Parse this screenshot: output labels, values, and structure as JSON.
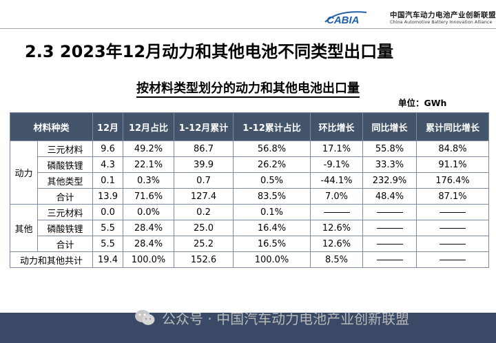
{
  "header": {
    "logo_text": "CABIA",
    "org_name_cn": "中国汽车动力电池产业创新联盟",
    "org_name_en": "China Automotive Battery Innovation Alliance"
  },
  "slide_title": "2.3 2023年12月动力和其他电池不同类型出口量",
  "table_title": "按材料类型划分的动力和其他电池出口量",
  "unit": "单位：GWh",
  "columns": [
    "材料种类",
    "12月",
    "12月占比",
    "1-12月累计",
    "1-12累计占比",
    "环比增长",
    "同比增长",
    "累计同比增长"
  ],
  "groups": [
    {
      "name": "动力",
      "rows": [
        {
          "type": "三元材料",
          "dec": "9.6",
          "dec_share": "49.2%",
          "ytd": "86.7",
          "ytd_share": "56.8%",
          "mom": "17.1%",
          "yoy": "55.8%",
          "ytd_yoy": "84.8%"
        },
        {
          "type": "磷酸铁锂",
          "dec": "4.3",
          "dec_share": "22.1%",
          "ytd": "39.9",
          "ytd_share": "26.2%",
          "mom": "-9.1%",
          "yoy": "33.3%",
          "ytd_yoy": "91.1%"
        },
        {
          "type": "其他类型",
          "dec": "0.1",
          "dec_share": "0.3%",
          "ytd": "0.7",
          "ytd_share": "0.5%",
          "mom": "-44.1%",
          "yoy": "232.9%",
          "ytd_yoy": "176.4%"
        },
        {
          "type": "合计",
          "dec": "13.9",
          "dec_share": "71.6%",
          "ytd": "127.4",
          "ytd_share": "83.5%",
          "mom": "7.0%",
          "yoy": "48.4%",
          "ytd_yoy": "87.1%"
        }
      ]
    },
    {
      "name": "其他",
      "rows": [
        {
          "type": "三元材料",
          "dec": "0.0",
          "dec_share": "0.0%",
          "ytd": "0.2",
          "ytd_share": "0.1%",
          "mom": "",
          "yoy": "",
          "ytd_yoy": ""
        },
        {
          "type": "磷酸铁锂",
          "dec": "5.5",
          "dec_share": "28.4%",
          "ytd": "25.0",
          "ytd_share": "16.4%",
          "mom": "12.6%",
          "yoy": "",
          "ytd_yoy": ""
        },
        {
          "type": "合计",
          "dec": "5.5",
          "dec_share": "28.4%",
          "ytd": "25.2",
          "ytd_share": "16.5%",
          "mom": "12.6%",
          "yoy": "",
          "ytd_yoy": ""
        }
      ]
    }
  ],
  "grand_total": {
    "label": "动力和其他共计",
    "dec": "19.4",
    "dec_share": "100.0%",
    "ytd": "152.6",
    "ytd_share": "100.0%",
    "mom": "8.5%",
    "yoy": "",
    "ytd_yoy": ""
  },
  "watermark": "公众号 · 中国汽车动力电池产业创新联盟",
  "colors": {
    "header_bg": "#44546a",
    "footer_band": "#3a4a66",
    "logo_blue": "#1f5fa8"
  }
}
